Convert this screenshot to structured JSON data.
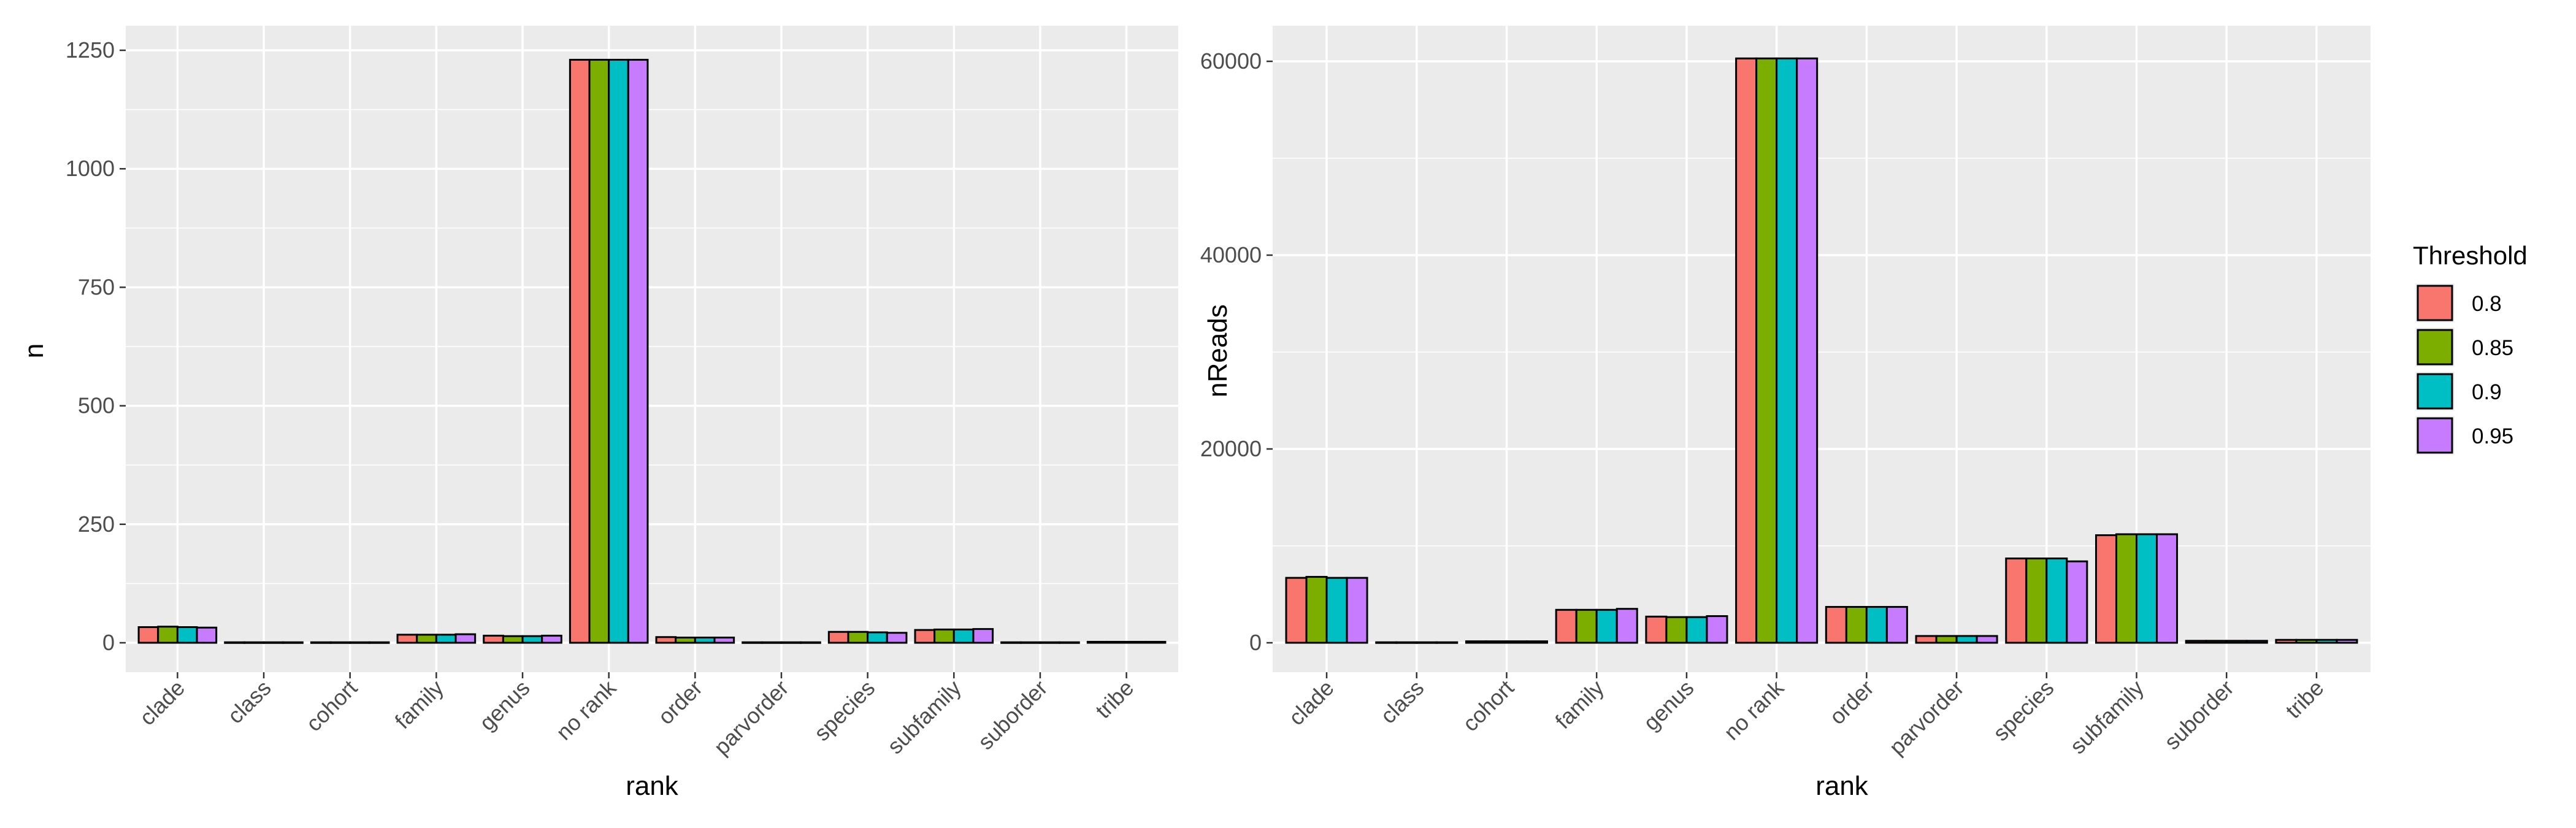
{
  "chart_data": [
    {
      "type": "bar",
      "panel": "left",
      "xlabel": "rank",
      "ylabel": "n",
      "ylim": [
        0,
        1250
      ],
      "yticks": [
        "0",
        "250",
        "500",
        "750",
        "1000",
        "1250"
      ],
      "categories": [
        "clade",
        "class",
        "cohort",
        "family",
        "genus",
        "no rank",
        "order",
        "parvorder",
        "species",
        "subfamily",
        "suborder",
        "tribe"
      ],
      "series": [
        {
          "name": "0.8",
          "values": [
            33,
            1,
            1,
            17,
            15,
            1230,
            12,
            1,
            23,
            27,
            1,
            2
          ]
        },
        {
          "name": "0.85",
          "values": [
            34,
            1,
            1,
            17,
            14,
            1230,
            11,
            1,
            23,
            28,
            1,
            2
          ]
        },
        {
          "name": "0.9",
          "values": [
            33,
            1,
            1,
            17,
            14,
            1230,
            11,
            1,
            22,
            28,
            1,
            2
          ]
        },
        {
          "name": "0.95",
          "values": [
            32,
            1,
            1,
            18,
            15,
            1230,
            11,
            1,
            21,
            29,
            1,
            2
          ]
        }
      ],
      "grid": true
    },
    {
      "type": "bar",
      "panel": "right",
      "xlabel": "rank",
      "ylabel": "nReads",
      "ylim": [
        0,
        60000
      ],
      "yticks": [
        "0",
        "20000",
        "40000",
        "60000"
      ],
      "categories": [
        "clade",
        "class",
        "cohort",
        "family",
        "genus",
        "no rank",
        "order",
        "parvorder",
        "species",
        "subfamily",
        "suborder",
        "tribe"
      ],
      "series": [
        {
          "name": "0.8",
          "values": [
            6700,
            50,
            150,
            3400,
            2700,
            60300,
            3700,
            700,
            8700,
            11100,
            200,
            300
          ]
        },
        {
          "name": "0.85",
          "values": [
            6800,
            50,
            150,
            3400,
            2650,
            60300,
            3700,
            700,
            8700,
            11200,
            200,
            300
          ]
        },
        {
          "name": "0.9",
          "values": [
            6700,
            50,
            150,
            3400,
            2650,
            60300,
            3700,
            700,
            8700,
            11200,
            200,
            300
          ]
        },
        {
          "name": "0.95",
          "values": [
            6700,
            50,
            150,
            3500,
            2750,
            60300,
            3700,
            700,
            8400,
            11200,
            200,
            300
          ]
        }
      ],
      "grid": true
    }
  ],
  "legend": {
    "title": "Threshold",
    "placement": "right",
    "items": [
      "0.8",
      "0.85",
      "0.9",
      "0.95"
    ]
  },
  "colors": {
    "series": [
      "#F8766D",
      "#7CAE00",
      "#00BFC4",
      "#C77CFF"
    ],
    "panel_background": "#EBEBEB",
    "grid": "#FFFFFF",
    "bar_outline": "#000000"
  }
}
